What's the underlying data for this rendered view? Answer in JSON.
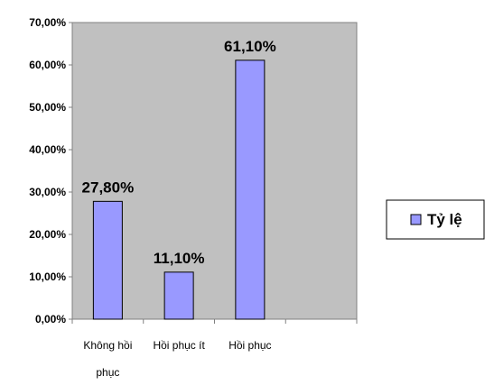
{
  "chart_data": {
    "type": "bar",
    "categories": [
      "Không hồi phục",
      "Hồi phục ít",
      "Hồi phục",
      ""
    ],
    "series": [
      {
        "name": "Tỷ lệ",
        "values": [
          27.8,
          11.1,
          61.1,
          null
        ]
      }
    ],
    "data_labels": [
      "27,80%",
      "11,10%",
      "61,10%"
    ],
    "ytick_labels": [
      "0,00%",
      "10,00%",
      "20,00%",
      "30,00%",
      "40,00%",
      "50,00%",
      "60,00%",
      "70,00%"
    ],
    "ylim": [
      0,
      70
    ],
    "xlabel": "",
    "ylabel": "",
    "title": "",
    "grid": false,
    "legend_position": "right",
    "colors": {
      "bar_fill": "#9999ff",
      "bar_stroke": "#000000",
      "plot_background": "#c0c0c0",
      "axis": "#808080"
    }
  }
}
